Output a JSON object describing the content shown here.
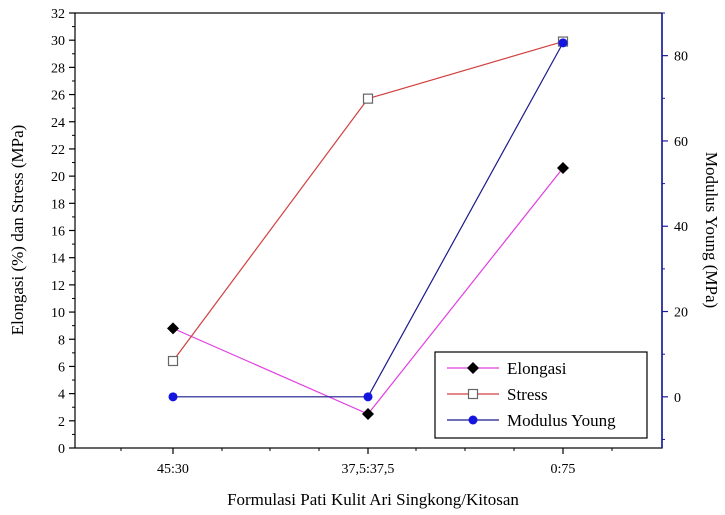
{
  "chart_data": {
    "type": "line",
    "xlabel": "Formulasi Pati Kulit Ari Singkong/Kitosan",
    "ylabel_left": "Elongasi (%) dan Stress (MPa)",
    "ylabel_right": "Modulus Young (MPa)",
    "categories": [
      "45:30",
      "37,5:37,5",
      "0:75"
    ],
    "ylim_left": [
      0,
      32
    ],
    "yticks_left": [
      0,
      2,
      4,
      6,
      8,
      10,
      12,
      14,
      16,
      18,
      20,
      22,
      24,
      26,
      28,
      30,
      32
    ],
    "ylim_right": [
      -12,
      90
    ],
    "yticks_right": [
      0,
      20,
      40,
      60,
      80
    ],
    "grid": false,
    "legend_position": "bottom-right",
    "series": [
      {
        "name": "Elongasi",
        "axis": "left",
        "values": [
          8.8,
          2.5,
          20.6
        ],
        "color": "#e040e0",
        "marker": "diamond-filled",
        "marker_color": "#000000"
      },
      {
        "name": "Stress",
        "axis": "left",
        "values": [
          6.4,
          25.7,
          29.9
        ],
        "color": "#d04040",
        "marker": "square-open",
        "marker_color": "#666666"
      },
      {
        "name": "Modulus Young",
        "axis": "right",
        "values": [
          0,
          0,
          83
        ],
        "color": "#1a1a8c",
        "marker": "circle-filled",
        "marker_color": "#1515e0"
      }
    ],
    "colors": {
      "right_axis": "#1a1aa0"
    }
  }
}
